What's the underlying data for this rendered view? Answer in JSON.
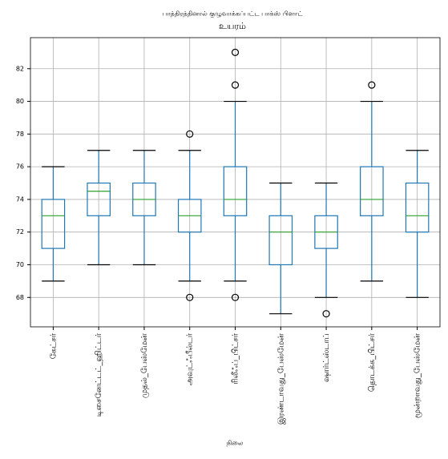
{
  "chart_data": {
    "type": "box",
    "title": "பாத்திரத்தினால் குழுவாக்கப்பட்ட பாக்ஸ் பிளாட்",
    "subtitle": "உயரம்",
    "xlabel": "நிலை",
    "categories": [
      "கேட்சர்",
      "டிசைனேட்டட்_ஹிட்டர்",
      "முதல்_பேஸ்மேன்",
      "அவுட்ஃபீல்டர்",
      "ரிலீஃப்_பிட்சர்",
      "இரண்டாவது_பேஸ்மேன்",
      "ஷார்ட்ஸ்டாப்",
      "தொடக்க_பிட்சர்",
      "மூன்றாவது_பேஸ்மேன்"
    ],
    "boxes": [
      {
        "whislo": 69,
        "q1": 71,
        "med": 73,
        "q3": 74,
        "whishi": 76,
        "fliers": []
      },
      {
        "whislo": 70,
        "q1": 73,
        "med": 74.5,
        "q3": 75,
        "whishi": 77,
        "fliers": []
      },
      {
        "whislo": 70,
        "q1": 73,
        "med": 74,
        "q3": 75,
        "whishi": 77,
        "fliers": []
      },
      {
        "whislo": 69,
        "q1": 72,
        "med": 73,
        "q3": 74,
        "whishi": 77,
        "fliers": [
          78,
          68
        ]
      },
      {
        "whislo": 69,
        "q1": 73,
        "med": 74,
        "q3": 76,
        "whishi": 80,
        "fliers": [
          83,
          81,
          68
        ]
      },
      {
        "whislo": 67,
        "q1": 70,
        "med": 72,
        "q3": 73,
        "whishi": 75,
        "fliers": []
      },
      {
        "whislo": 68,
        "q1": 71,
        "med": 72,
        "q3": 73,
        "whishi": 75,
        "fliers": [
          67
        ]
      },
      {
        "whislo": 69,
        "q1": 73,
        "med": 74,
        "q3": 76,
        "whishi": 80,
        "fliers": [
          81
        ]
      },
      {
        "whislo": 68,
        "q1": 72,
        "med": 73,
        "q3": 75,
        "whishi": 77,
        "fliers": []
      }
    ],
    "box_color": "#1f77b4",
    "median_color": "#2ca02c",
    "ylim": [
      66.2,
      83.9
    ],
    "yticks": [
      68,
      70,
      72,
      74,
      76,
      78,
      80,
      82
    ],
    "grid": true
  }
}
